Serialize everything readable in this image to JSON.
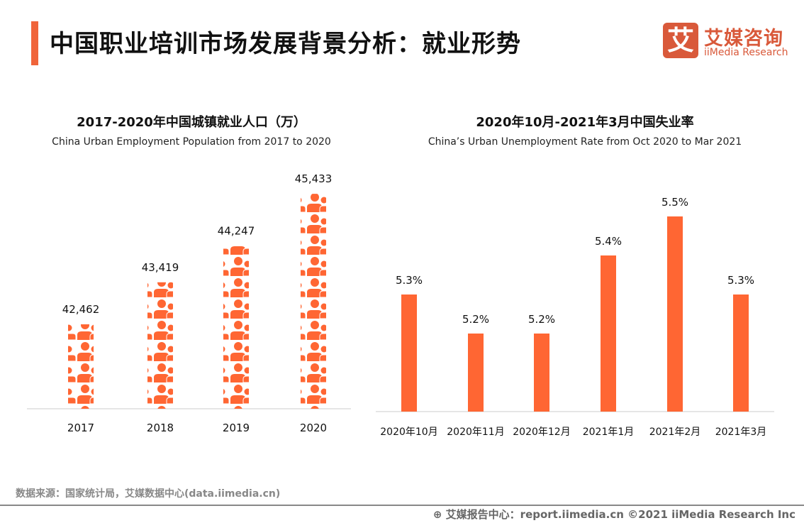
{
  "header": {
    "title": "中国职业培训市场发展背景分析：就业形势",
    "logo_mark": "艾",
    "logo_cn": "艾媒咨询",
    "logo_en": "iiMedia Research"
  },
  "colors": {
    "accent": "#f0643a",
    "bar": "#ff6633",
    "logo": "#d9593a"
  },
  "chart_data": [
    {
      "type": "bar",
      "style": "pictogram",
      "icon": "people-icon",
      "title": "2017-2020年中国城镇就业人口（万）",
      "subtitle": "China Urban Employment Population from 2017 to 2020",
      "categories": [
        "2017",
        "2018",
        "2019",
        "2020"
      ],
      "values": [
        42462,
        43419,
        44247,
        45433
      ],
      "data_labels": [
        "42,462",
        "43,419",
        "44,247",
        "45,433"
      ],
      "grid": false
    },
    {
      "type": "bar",
      "title": "2020年10月-2021年3月中国失业率",
      "subtitle": "China’s Urban Unemployment Rate from Oct 2020 to Mar 2021",
      "categories": [
        "2020年10月",
        "2020年11月",
        "2020年12月",
        "2021年1月",
        "2021年2月",
        "2021年3月"
      ],
      "values": [
        5.3,
        5.2,
        5.2,
        5.4,
        5.5,
        5.3
      ],
      "data_labels": [
        "5.3%",
        "5.2%",
        "5.2%",
        "5.4%",
        "5.5%",
        "5.3%"
      ],
      "grid": false
    }
  ],
  "footer": {
    "source": "数据来源：国家统计局，艾媒数据中心(data.iimedia.cn)",
    "report": "艾媒报告中心：report.iimedia.cn   ©2021  iiMedia Research  Inc"
  }
}
